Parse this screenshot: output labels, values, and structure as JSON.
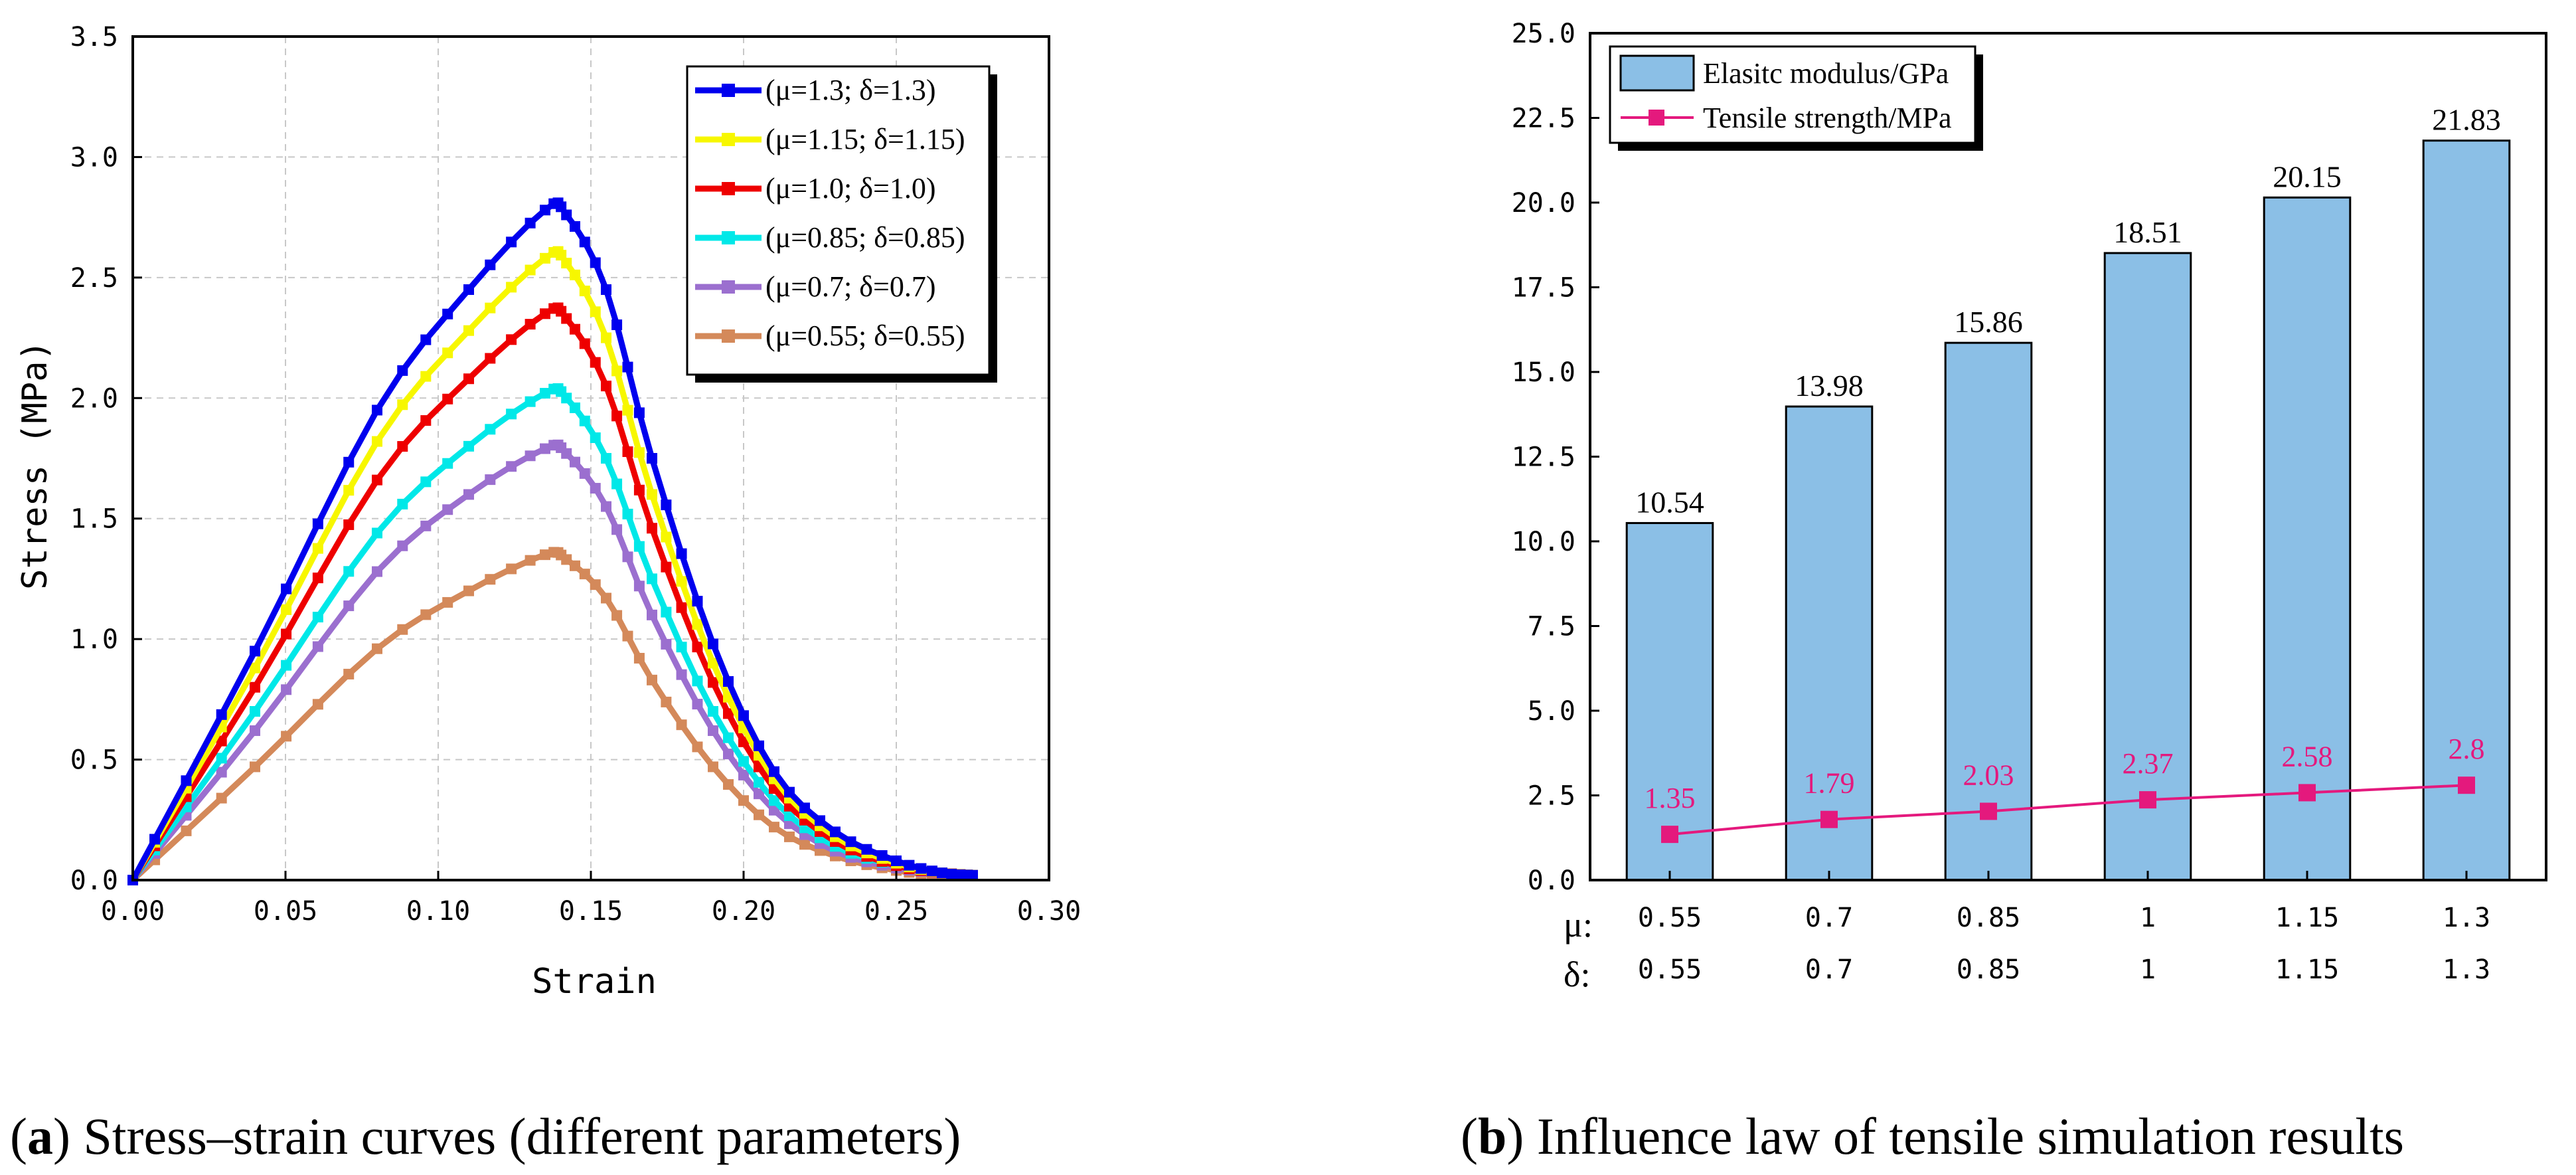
{
  "chart_data": [
    {
      "type": "line",
      "panel": "a",
      "xlabel": "Strain",
      "ylabel": "Stress (MPa)",
      "xlim": [
        0,
        0.3
      ],
      "ylim": [
        0,
        3.5
      ],
      "xticks": [
        "0.00",
        "0.05",
        "0.10",
        "0.15",
        "0.20",
        "0.25",
        "0.30"
      ],
      "yticks": [
        "0.0",
        "0.5",
        "1.0",
        "1.5",
        "2.0",
        "2.5",
        "3.0",
        "3.5"
      ],
      "grid": true,
      "legend_position": "top-right",
      "x": [
        0,
        0.04,
        0.08,
        0.11,
        0.135,
        0.142,
        0.155,
        0.17,
        0.19,
        0.21,
        0.23,
        0.25,
        0.265,
        0.275
      ],
      "series": [
        {
          "name": "(μ=1.3;  δ=1.3)",
          "color": "#0000ee",
          "values": [
            0,
            0.95,
            1.95,
            2.45,
            2.78,
            2.76,
            2.45,
            1.75,
            0.98,
            0.45,
            0.2,
            0.08,
            0.03,
            0.02
          ]
        },
        {
          "name": "(μ=1.15;  δ=1.15)",
          "color": "#f7f700",
          "values": [
            0,
            0.88,
            1.82,
            2.28,
            2.58,
            2.56,
            2.25,
            1.6,
            0.9,
            0.42,
            0.18,
            0.07,
            0.03,
            0.02
          ]
        },
        {
          "name": "(μ=1.0;  δ=1.0)",
          "color": "#ee0000",
          "values": [
            0,
            0.8,
            1.66,
            2.08,
            2.35,
            2.33,
            2.05,
            1.46,
            0.82,
            0.38,
            0.16,
            0.06,
            0.03,
            0.02
          ]
        },
        {
          "name": "(μ=0.85;  δ=0.85)",
          "color": "#00e8e8",
          "values": [
            0,
            0.7,
            1.44,
            1.8,
            2.02,
            2.0,
            1.75,
            1.25,
            0.7,
            0.33,
            0.14,
            0.06,
            0.03,
            0.02
          ]
        },
        {
          "name": "(μ=0.7;  δ=0.7)",
          "color": "#9b6fcf",
          "values": [
            0,
            0.62,
            1.28,
            1.6,
            1.79,
            1.77,
            1.55,
            1.1,
            0.62,
            0.29,
            0.12,
            0.05,
            0.03,
            0.02
          ]
        },
        {
          "name": "(μ=0.55;  δ=0.55)",
          "color": "#d4895a",
          "values": [
            0,
            0.47,
            0.96,
            1.2,
            1.35,
            1.33,
            1.17,
            0.83,
            0.47,
            0.22,
            0.1,
            0.04,
            0.02,
            0.02
          ]
        }
      ],
      "caption_bold": "a",
      "caption_text": "Stress–strain curves (different parameters)"
    },
    {
      "type": "bar",
      "panel": "b",
      "categories_mu": [
        "0.55",
        "0.7",
        "0.85",
        "1",
        "1.15",
        "1.3"
      ],
      "categories_delta": [
        "0.55",
        "0.7",
        "0.85",
        "1",
        "1.15",
        "1.3"
      ],
      "row_labels": {
        "mu": "μ:",
        "delta": "δ:"
      },
      "ylim": [
        0,
        25
      ],
      "yticks": [
        "0.0",
        "2.5",
        "5.0",
        "7.5",
        "10.0",
        "12.5",
        "15.0",
        "17.5",
        "20.0",
        "22.5",
        "25.0"
      ],
      "legend_position": "top-left",
      "series": [
        {
          "name": "Elasitc modulus/GPa",
          "kind": "bar",
          "color": "#8bbfe6",
          "values": [
            10.54,
            13.98,
            15.86,
            18.51,
            20.15,
            21.83
          ],
          "labels": [
            "10.54",
            "13.98",
            "15.86",
            "18.51",
            "20.15",
            "21.83"
          ]
        },
        {
          "name": "Tensile strength/MPa",
          "kind": "line",
          "color": "#e4197d",
          "values": [
            1.35,
            1.79,
            2.03,
            2.37,
            2.58,
            2.8
          ],
          "labels": [
            "1.35",
            "1.79",
            "2.03",
            "2.37",
            "2.58",
            "2.8"
          ]
        }
      ],
      "caption_bold": "b",
      "caption_text": "Influence law of tensile simulation results"
    }
  ]
}
